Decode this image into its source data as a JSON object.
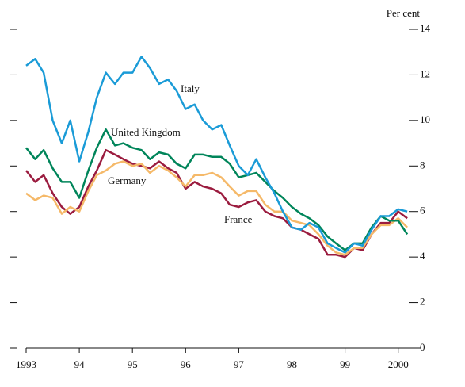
{
  "chart_data": {
    "type": "line",
    "y_label": "Per cent",
    "x": [
      1993,
      1993.17,
      1993.33,
      1993.5,
      1993.67,
      1993.83,
      1994,
      1994.17,
      1994.33,
      1994.5,
      1994.67,
      1994.83,
      1995,
      1995.17,
      1995.33,
      1995.5,
      1995.67,
      1995.83,
      1996,
      1996.17,
      1996.33,
      1996.5,
      1996.67,
      1996.83,
      1997,
      1997.17,
      1997.33,
      1997.5,
      1997.67,
      1997.83,
      1998,
      1998.17,
      1998.33,
      1998.5,
      1998.67,
      1998.83,
      1999,
      1999.17,
      1999.33,
      1999.5,
      1999.67,
      1999.83,
      2000,
      2000.17
    ],
    "series": [
      {
        "name": "Italy",
        "color": "#1a9bd7",
        "values": [
          12.4,
          12.7,
          12.1,
          10.0,
          9.0,
          10.0,
          8.2,
          9.5,
          11.0,
          12.1,
          11.6,
          12.1,
          12.1,
          12.8,
          12.3,
          11.6,
          11.8,
          11.3,
          10.5,
          10.7,
          10.0,
          9.6,
          9.8,
          8.9,
          8.0,
          7.6,
          8.3,
          7.5,
          6.8,
          6.0,
          5.3,
          5.2,
          5.5,
          5.3,
          4.6,
          4.4,
          4.2,
          4.6,
          4.5,
          5.2,
          5.8,
          5.8,
          6.1,
          6.0
        ]
      },
      {
        "name": "United Kingdom",
        "color": "#00855a",
        "values": [
          8.8,
          8.3,
          8.7,
          7.9,
          7.3,
          7.3,
          6.6,
          7.8,
          8.8,
          9.6,
          8.9,
          9.0,
          8.8,
          8.7,
          8.3,
          8.6,
          8.5,
          8.1,
          7.9,
          8.5,
          8.5,
          8.4,
          8.4,
          8.1,
          7.5,
          7.6,
          7.7,
          7.3,
          6.9,
          6.6,
          6.2,
          5.9,
          5.7,
          5.4,
          4.9,
          4.6,
          4.3,
          4.6,
          4.6,
          5.3,
          5.8,
          5.6,
          5.6,
          5.0
        ]
      },
      {
        "name": "Germany",
        "color": "#f5b969",
        "values": [
          6.8,
          6.5,
          6.7,
          6.6,
          5.9,
          6.2,
          6.0,
          6.9,
          7.6,
          7.8,
          8.1,
          8.2,
          8.0,
          8.1,
          7.7,
          8.0,
          7.8,
          7.5,
          7.1,
          7.6,
          7.6,
          7.7,
          7.5,
          7.1,
          6.7,
          6.9,
          6.9,
          6.3,
          6.0,
          6.0,
          5.6,
          5.5,
          5.4,
          5.0,
          4.5,
          4.2,
          4.1,
          4.4,
          4.4,
          5.0,
          5.4,
          5.4,
          5.7,
          5.3
        ]
      },
      {
        "name": "France",
        "color": "#9b1c3f",
        "values": [
          7.8,
          7.3,
          7.6,
          6.8,
          6.2,
          5.9,
          6.2,
          7.1,
          7.8,
          8.7,
          8.5,
          8.3,
          8.1,
          8.0,
          7.9,
          8.2,
          7.9,
          7.7,
          7.0,
          7.3,
          7.1,
          7.0,
          6.8,
          6.3,
          6.2,
          6.4,
          6.5,
          6.0,
          5.8,
          5.7,
          5.3,
          5.2,
          5.0,
          4.8,
          4.1,
          4.1,
          4.0,
          4.4,
          4.3,
          5.0,
          5.5,
          5.5,
          6.0,
          5.7
        ]
      }
    ],
    "xlim": [
      1993,
      2000.3
    ],
    "xticks": [
      1993,
      {
        "value": 1994,
        "label": "94"
      },
      {
        "value": 1995,
        "label": "95"
      },
      {
        "value": 1996,
        "label": "96"
      },
      {
        "value": 1997,
        "label": "97"
      },
      {
        "value": 1998,
        "label": "98"
      },
      {
        "value": 1999,
        "label": "99"
      },
      2000
    ],
    "ylim": [
      0,
      14
    ],
    "yticks": [
      0,
      2,
      4,
      6,
      8,
      10,
      12,
      14
    ]
  }
}
